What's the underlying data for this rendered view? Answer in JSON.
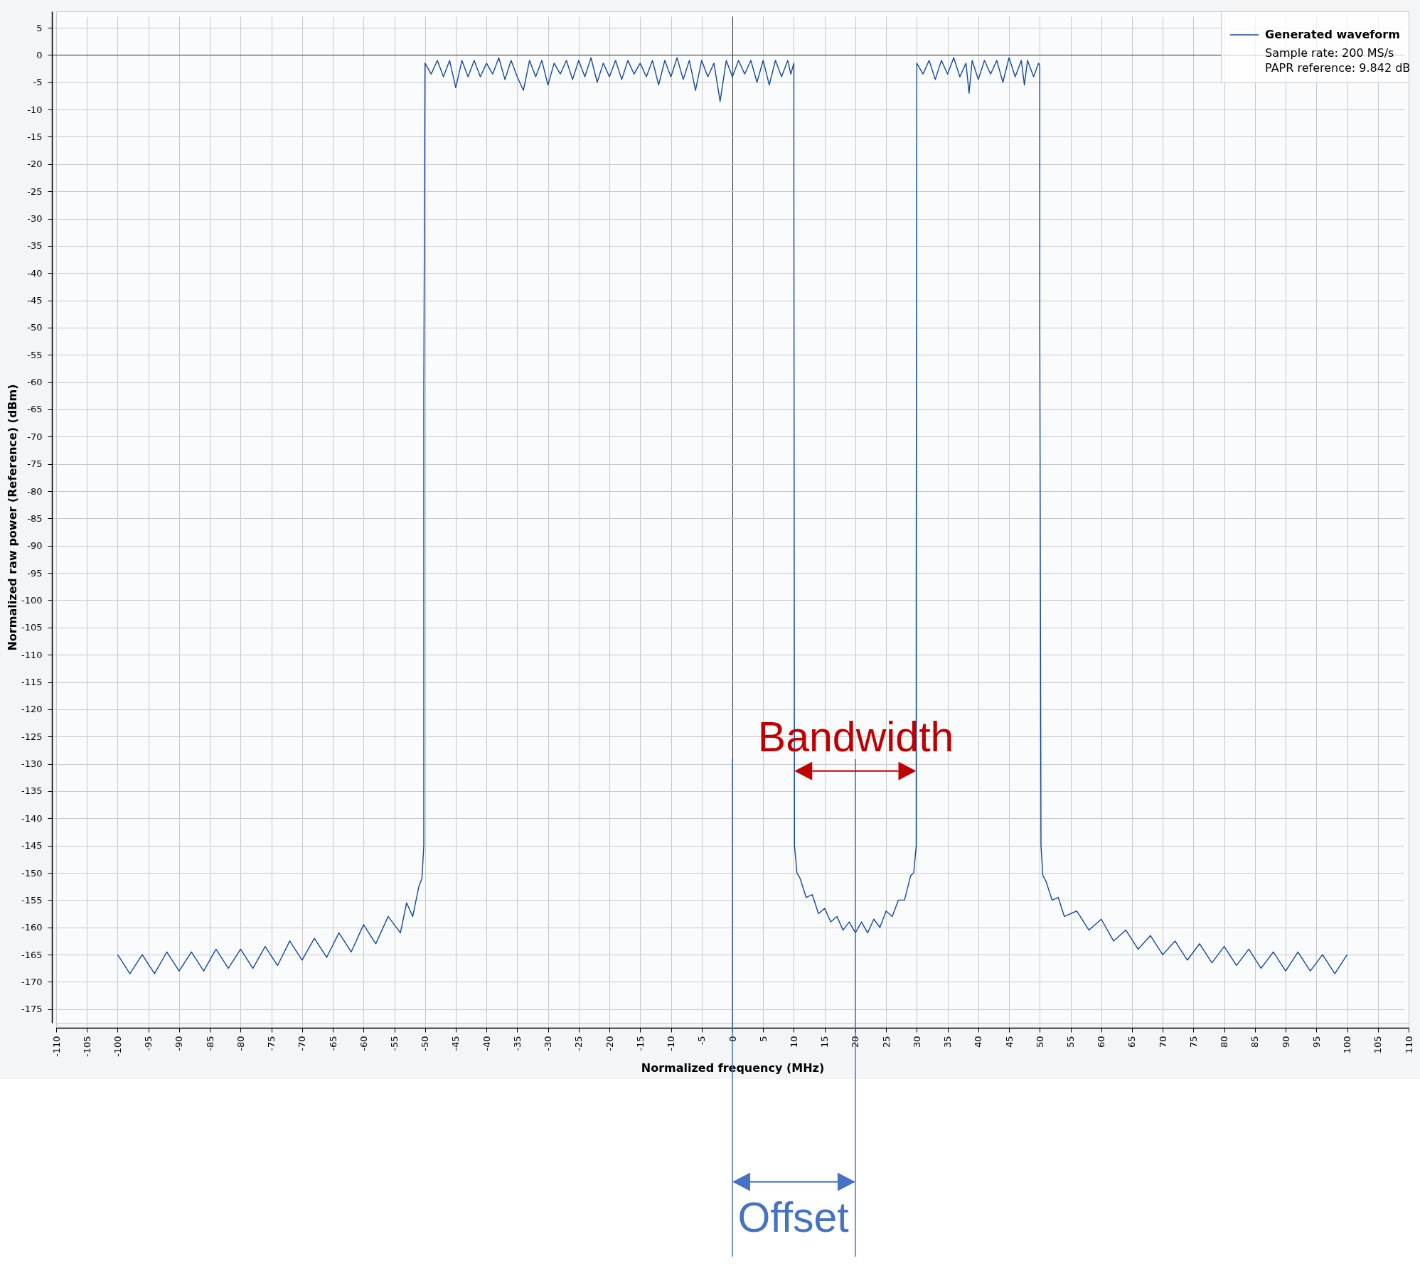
{
  "chart_data": {
    "type": "line",
    "xlabel": "Normalized frequency (MHz)",
    "ylabel": "Normalized raw power (Reference) (dBm)",
    "x": [
      -100,
      -98,
      -96,
      -94,
      -92,
      -90,
      -88,
      -86,
      -84,
      -82,
      -80,
      -78,
      -76,
      -74,
      -72,
      -70,
      -68,
      -66,
      -64,
      -62,
      -60,
      -58,
      -56,
      -54,
      -53,
      -52,
      -51,
      -50.5,
      -50.2,
      -50.2,
      -50,
      -49,
      -48,
      -47,
      -46,
      -45,
      -44,
      -43,
      -42,
      -41,
      -40,
      -39,
      -38,
      -37,
      -36,
      -35,
      -34,
      -33,
      -32,
      -31,
      -30,
      -29,
      -28,
      -27,
      -26,
      -25,
      -24,
      -23,
      -22,
      -21,
      -20,
      -19,
      -18,
      -17,
      -16,
      -15,
      -14,
      -13,
      -12,
      -11,
      -10,
      -9,
      -8,
      -7,
      -6,
      -5,
      -4,
      -3,
      -2,
      -1,
      0,
      1,
      2,
      3,
      4,
      5,
      6,
      7,
      8,
      9,
      9.5,
      10,
      10,
      10.1,
      10.5,
      11,
      12,
      13,
      14,
      15,
      16,
      17,
      18,
      19,
      20,
      21,
      22,
      23,
      24,
      25,
      26,
      27,
      28,
      29,
      29.5,
      29.9,
      29.9,
      30,
      31,
      32,
      33,
      34,
      35,
      36,
      37,
      38,
      38.5,
      39,
      40,
      41,
      42,
      43,
      44,
      45,
      46,
      47,
      47.5,
      48,
      49,
      49.8,
      50,
      50,
      50.2,
      50.5,
      51,
      52,
      53,
      54,
      56,
      58,
      60,
      62,
      64,
      66,
      68,
      70,
      72,
      74,
      76,
      78,
      80,
      82,
      84,
      86,
      88,
      90,
      92,
      94,
      96,
      98,
      100
    ],
    "series": [
      {
        "name": "Generated waveform",
        "color": "#1048a0",
        "values": [
          -165,
          -168.5,
          -165,
          -168.5,
          -164.5,
          -168,
          -164.5,
          -168,
          -164,
          -167.5,
          -164,
          -167.5,
          -163.5,
          -167,
          -162.5,
          -166,
          -162,
          -165.5,
          -161,
          -164.5,
          -159.5,
          -163,
          -158,
          -161,
          -155.5,
          -158,
          -152.5,
          -151,
          -145,
          -62,
          -1.5,
          -3.5,
          -1,
          -4,
          -1,
          -6,
          -1,
          -4,
          -1,
          -4,
          -1.5,
          -3.5,
          -0.5,
          -4.5,
          -1,
          -4,
          -6.5,
          -1,
          -4,
          -1,
          -5.5,
          -1.5,
          -3.5,
          -1,
          -4.5,
          -1,
          -4,
          -0.5,
          -5,
          -1.5,
          -4,
          -1,
          -4.5,
          -1,
          -3.5,
          -1.5,
          -4,
          -1,
          -5.5,
          -1,
          -4,
          -0.5,
          -4.5,
          -1,
          -6.5,
          -1,
          -4,
          -1.5,
          -8.5,
          -1,
          -4,
          -1,
          -3.5,
          -1,
          -5,
          -1,
          -5.5,
          -1,
          -4,
          -1,
          -3.5,
          -1.5,
          -20,
          -145,
          -150,
          -151,
          -154.5,
          -154,
          -157.5,
          -156.5,
          -159,
          -158,
          -160.5,
          -159,
          -161,
          -159,
          -161,
          -158.5,
          -160,
          -157,
          -158,
          -155,
          -155,
          -150.5,
          -150,
          -145,
          -96,
          -1.5,
          -3.5,
          -1,
          -4.5,
          -1,
          -3.5,
          -0.5,
          -4,
          -1.5,
          -7,
          -1,
          -4.5,
          -1,
          -3.5,
          -1,
          -5,
          -0.5,
          -4,
          -1,
          -5.5,
          -1,
          -4,
          -1.5,
          -2,
          -49,
          -145,
          -150.5,
          -151.5,
          -155,
          -154.5,
          -158,
          -157,
          -160.5,
          -158.5,
          -162.5,
          -160.5,
          -164,
          -161.5,
          -165,
          -162.5,
          -166,
          -163,
          -166.5,
          -163.5,
          -167,
          -164,
          -167.5,
          -164.5,
          -168,
          -164.5,
          -168,
          -165,
          -168.5,
          -165
        ]
      }
    ],
    "xlim": [
      -110,
      110
    ],
    "ylim": [
      -177.5,
      8
    ],
    "xticks": [
      -110,
      -105,
      -100,
      -95,
      -90,
      -85,
      -80,
      -75,
      -70,
      -65,
      -60,
      -55,
      -50,
      -45,
      -40,
      -35,
      -30,
      -25,
      -20,
      -15,
      -10,
      -5,
      0,
      5,
      10,
      15,
      20,
      25,
      30,
      35,
      40,
      45,
      50,
      55,
      60,
      65,
      70,
      75,
      80,
      85,
      90,
      95,
      100,
      105,
      110
    ],
    "yticks": [
      -175,
      -170,
      -165,
      -160,
      -155,
      -150,
      -145,
      -140,
      -135,
      -130,
      -125,
      -120,
      -115,
      -110,
      -105,
      -100,
      -95,
      -90,
      -85,
      -80,
      -75,
      -70,
      -65,
      -60,
      -55,
      -50,
      -45,
      -40,
      -35,
      -30,
      -25,
      -20,
      -15,
      -10,
      -5,
      0,
      5
    ],
    "grid": true,
    "legend": "top right",
    "annotations": [
      "Sample rate: 200 MS/s",
      "PAPR reference: 9.842 dB",
      "Bandwidth",
      "Offset"
    ],
    "ref_lines": [
      {
        "axis": "x",
        "value": 0,
        "color": "#4472c4"
      },
      {
        "axis": "x",
        "value": 20,
        "color": "#4472c4"
      }
    ]
  }
}
